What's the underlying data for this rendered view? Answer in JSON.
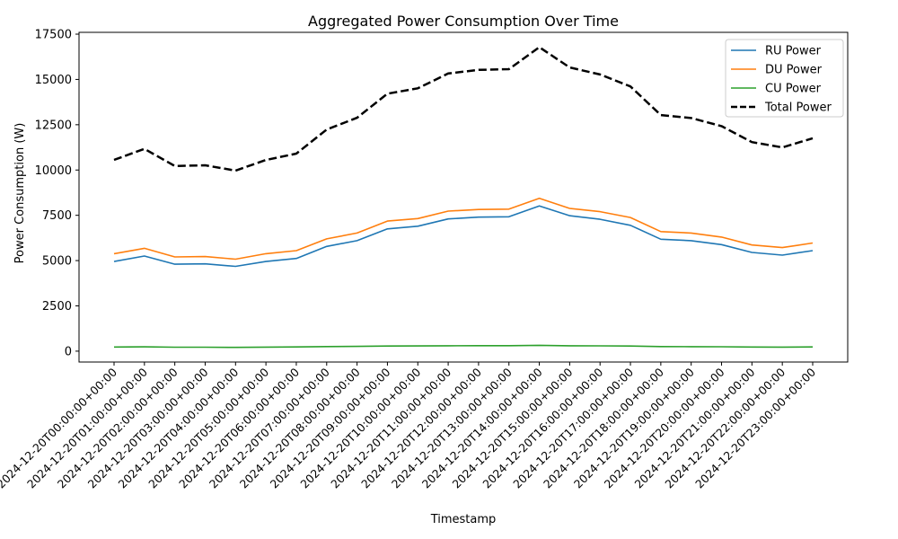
{
  "chart_data": {
    "type": "line",
    "title": "Aggregated Power Consumption Over Time",
    "xlabel": "Timestamp",
    "ylabel": "Power Consumption (W)",
    "ylim": [
      -600,
      17600
    ],
    "yticks": [
      0,
      2500,
      5000,
      7500,
      10000,
      12500,
      15000,
      17500
    ],
    "ytick_labels": [
      "0",
      "2500",
      "5000",
      "7500",
      "10000",
      "12500",
      "15000",
      "17500"
    ],
    "grid": false,
    "legend_position": "top-right",
    "x": [
      "2024-12-20T00:00:00+00:00",
      "2024-12-20T01:00:00+00:00",
      "2024-12-20T02:00:00+00:00",
      "2024-12-20T03:00:00+00:00",
      "2024-12-20T04:00:00+00:00",
      "2024-12-20T05:00:00+00:00",
      "2024-12-20T06:00:00+00:00",
      "2024-12-20T07:00:00+00:00",
      "2024-12-20T08:00:00+00:00",
      "2024-12-20T09:00:00+00:00",
      "2024-12-20T10:00:00+00:00",
      "2024-12-20T11:00:00+00:00",
      "2024-12-20T12:00:00+00:00",
      "2024-12-20T13:00:00+00:00",
      "2024-12-20T14:00:00+00:00",
      "2024-12-20T15:00:00+00:00",
      "2024-12-20T16:00:00+00:00",
      "2024-12-20T17:00:00+00:00",
      "2024-12-20T18:00:00+00:00",
      "2024-12-20T19:00:00+00:00",
      "2024-12-20T20:00:00+00:00",
      "2024-12-20T21:00:00+00:00",
      "2024-12-20T22:00:00+00:00",
      "2024-12-20T23:00:00+00:00"
    ],
    "series": [
      {
        "name": "RU Power",
        "color": "#1f77b4",
        "dash": "solid",
        "values": [
          4950,
          5250,
          4800,
          4820,
          4680,
          4950,
          5120,
          5780,
          6100,
          6750,
          6900,
          7300,
          7400,
          7420,
          8020,
          7480,
          7280,
          6950,
          6180,
          6100,
          5880,
          5450,
          5300,
          5550
        ]
      },
      {
        "name": "DU Power",
        "color": "#ff7f0e",
        "dash": "solid",
        "values": [
          5380,
          5680,
          5200,
          5220,
          5080,
          5380,
          5550,
          6200,
          6520,
          7180,
          7320,
          7730,
          7820,
          7840,
          8440,
          7880,
          7700,
          7380,
          6600,
          6520,
          6300,
          5860,
          5720,
          5970
        ]
      },
      {
        "name": "CU Power",
        "color": "#2ca02c",
        "dash": "solid",
        "values": [
          230,
          240,
          220,
          220,
          210,
          225,
          235,
          255,
          265,
          285,
          290,
          300,
          305,
          305,
          320,
          300,
          295,
          285,
          255,
          250,
          245,
          230,
          225,
          235
        ]
      },
      {
        "name": "Total Power",
        "color": "#000000",
        "dash": "dashed",
        "values": [
          10560,
          11170,
          10220,
          10260,
          9970,
          10555,
          10905,
          12235,
          12885,
          14215,
          14510,
          15330,
          15525,
          15565,
          16780,
          15660,
          15275,
          14615,
          13035,
          12870,
          12425,
          11540,
          11245,
          11755
        ]
      }
    ]
  }
}
